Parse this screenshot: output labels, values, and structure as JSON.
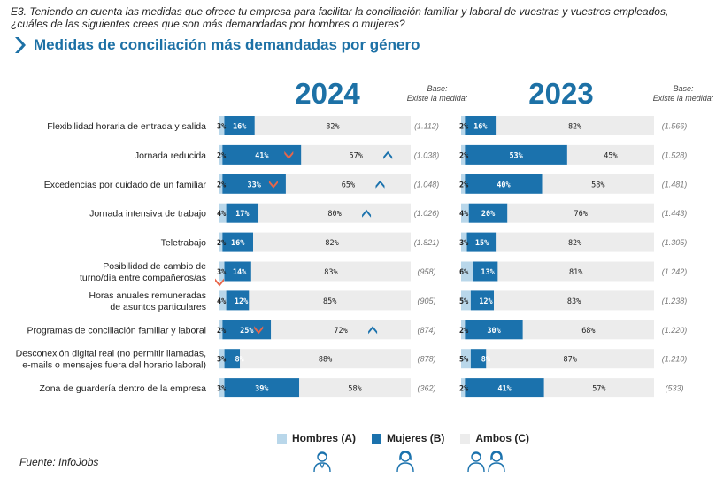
{
  "question": {
    "line1": "E3. Teniendo en cuenta las medidas que ofrece tu empresa para facilitar la conciliación familiar y laboral de vuestras y vuestros empleados,",
    "line2": "¿cuáles de las siguientes crees que son más demandadas por hombres o mujeres?"
  },
  "subtitle": "Medidas de conciliación más demandadas por género",
  "source": "Fuente: InfoJobs",
  "colors": {
    "hombres": "#b9d7ea",
    "mujeres": "#1b72ad",
    "ambos": "#ececec",
    "accent": "#1d71a6",
    "arrow_down": "#e8664a",
    "arrow_up": "#1b72ad"
  },
  "legend": {
    "hombres": "Hombres (A)",
    "mujeres": "Mujeres (B)",
    "ambos": "Ambos (C)"
  },
  "chart_data": [
    {
      "type": "bar",
      "stacked": "horizontal-100%",
      "title": "2024",
      "base_label": "Base:\nExiste la medida:",
      "categories": [
        "Flexibilidad horaria de entrada y salida",
        "Jornada reducida",
        "Excedencias por cuidado de un familiar",
        "Jornada intensiva de trabajo",
        "Teletrabajo",
        "Posibilidad de cambio de turno/día entre compañeros/as",
        "Horas anuales remuneradas de asuntos particulares",
        "Programas de conciliación familiar y laboral",
        "Desconexión digital real (no permitir llamadas, e-mails o mensajes fuera del horario laboral)",
        "Zona de guardería dentro de la empresa"
      ],
      "series": [
        {
          "name": "Hombres (A)",
          "values": [
            3,
            2,
            2,
            4,
            2,
            3,
            4,
            2,
            3,
            3
          ]
        },
        {
          "name": "Mujeres (B)",
          "values": [
            16,
            41,
            33,
            17,
            16,
            14,
            12,
            25,
            8,
            39
          ]
        },
        {
          "name": "Ambos (C)",
          "values": [
            82,
            57,
            65,
            80,
            82,
            83,
            85,
            72,
            88,
            58
          ]
        }
      ],
      "base": [
        "(1.112)",
        "(1.038)",
        "(1.048)",
        "(1.026)",
        "(1.821)",
        "(958)",
        "(905)",
        "(874)",
        "(878)",
        "(362)"
      ],
      "markers": [
        {
          "category": 1,
          "series": "Mujeres (B)",
          "direction": "down"
        },
        {
          "category": 1,
          "series": "Ambos (C)",
          "direction": "up"
        },
        {
          "category": 2,
          "series": "Mujeres (B)",
          "direction": "down"
        },
        {
          "category": 2,
          "series": "Ambos (C)",
          "direction": "up"
        },
        {
          "category": 3,
          "series": "Ambos (C)",
          "direction": "up"
        },
        {
          "category": 5,
          "series": "Hombres (A)",
          "direction": "down"
        },
        {
          "category": 7,
          "series": "Mujeres (B)",
          "direction": "down"
        },
        {
          "category": 7,
          "series": "Ambos (C)",
          "direction": "up"
        }
      ]
    },
    {
      "type": "bar",
      "stacked": "horizontal-100%",
      "title": "2023",
      "base_label": "Base:\nExiste la medida:",
      "series": [
        {
          "name": "Hombres (A)",
          "values": [
            2,
            2,
            2,
            4,
            3,
            6,
            5,
            2,
            5,
            2
          ]
        },
        {
          "name": "Mujeres (B)",
          "values": [
            16,
            53,
            40,
            20,
            15,
            13,
            12,
            30,
            8,
            41
          ]
        },
        {
          "name": "Ambos (C)",
          "values": [
            82,
            45,
            58,
            76,
            82,
            81,
            83,
            68,
            87,
            57
          ]
        }
      ],
      "base": [
        "(1.566)",
        "(1.528)",
        "(1.481)",
        "(1.443)",
        "(1.305)",
        "(1.242)",
        "(1.238)",
        "(1.220)",
        "(1.210)",
        "(533)"
      ]
    }
  ]
}
